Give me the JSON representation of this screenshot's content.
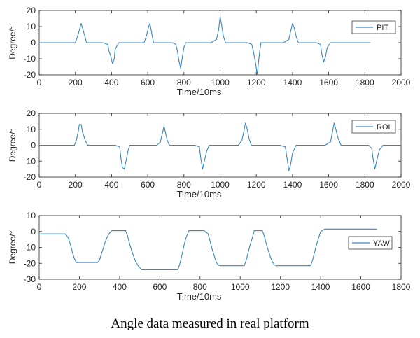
{
  "caption": "Angle data measured in real platform",
  "colors": {
    "line": "#3a86c0",
    "axis": "#262626"
  },
  "chart_data": [
    {
      "type": "line",
      "xlabel": "Time/10ms",
      "ylabel": "Degree/°",
      "xlim": [
        0,
        2000
      ],
      "ylim": [
        -20,
        20
      ],
      "xticks": [
        0,
        200,
        400,
        600,
        800,
        1000,
        1200,
        1400,
        1600,
        1800,
        2000
      ],
      "yticks": [
        20,
        10,
        0,
        -10,
        -20
      ],
      "grid": false,
      "legend": "top-right",
      "series": [
        {
          "name": "PIT",
          "x": [
            0,
            200,
            215,
            225,
            232,
            240,
            250,
            262,
            350,
            380,
            385,
            395,
            405,
            415,
            420,
            440,
            580,
            595,
            605,
            612,
            620,
            632,
            735,
            755,
            765,
            772,
            782,
            790,
            800,
            810,
            950,
            980,
            992,
            1000,
            1008,
            1018,
            1030,
            1150,
            1175,
            1185,
            1195,
            1205,
            1215,
            1225,
            1350,
            1380,
            1392,
            1400,
            1410,
            1420,
            1432,
            1530,
            1555,
            1560,
            1572,
            1582,
            1592,
            1610,
            1830
          ],
          "y": [
            0,
            0,
            5,
            9,
            12,
            9,
            5,
            0,
            0,
            -1,
            -5,
            -8,
            -13,
            -10,
            -4,
            0,
            0,
            5,
            10,
            12,
            7,
            0,
            0,
            -1,
            -6,
            -11,
            -16,
            -10,
            -3,
            0,
            0,
            2,
            8,
            16,
            11,
            4,
            0,
            0,
            -1,
            -6,
            -12,
            -20,
            -9,
            0,
            0,
            2,
            8,
            12,
            9,
            4,
            0,
            0,
            -1,
            -6,
            -12,
            -9,
            -3,
            0,
            0
          ]
        }
      ]
    },
    {
      "type": "line",
      "xlabel": "Time/10ms",
      "ylabel": "Degree/°",
      "xlim": [
        0,
        2000
      ],
      "ylim": [
        -20,
        20
      ],
      "xticks": [
        0,
        200,
        400,
        600,
        800,
        1000,
        1200,
        1400,
        1600,
        1800,
        2000
      ],
      "yticks": [
        20,
        10,
        0,
        -10,
        -20
      ],
      "grid": false,
      "legend": "top-right",
      "series": [
        {
          "name": "ROL",
          "x": [
            0,
            195,
            205,
            215,
            222,
            232,
            240,
            255,
            268,
            420,
            445,
            452,
            460,
            470,
            480,
            490,
            500,
            650,
            670,
            680,
            690,
            698,
            708,
            720,
            860,
            885,
            893,
            903,
            913,
            925,
            940,
            1100,
            1120,
            1130,
            1140,
            1150,
            1160,
            1172,
            1330,
            1360,
            1370,
            1380,
            1390,
            1400,
            1420,
            1580,
            1610,
            1620,
            1630,
            1640,
            1650,
            1668,
            1820,
            1838,
            1845,
            1855,
            1865,
            1880,
            1900,
            2000
          ],
          "y": [
            0,
            0,
            3,
            8,
            13,
            13,
            8,
            3,
            0,
            0,
            -1,
            -8,
            -14,
            -15,
            -10,
            -4,
            0,
            0,
            2,
            7,
            12,
            8,
            3,
            0,
            0,
            -1,
            -8,
            -15,
            -10,
            -4,
            0,
            0,
            3,
            8,
            14,
            10,
            4,
            0,
            0,
            -1,
            -8,
            -16,
            -12,
            -5,
            0,
            0,
            2,
            8,
            14,
            10,
            5,
            0,
            0,
            -2,
            -8,
            -15,
            -10,
            -3,
            0,
            0
          ]
        }
      ]
    },
    {
      "type": "line",
      "xlabel": "Time/10ms",
      "ylabel": "Degree/°",
      "xlim": [
        0,
        1800
      ],
      "ylim": [
        -30,
        10
      ],
      "xticks": [
        0,
        200,
        400,
        600,
        800,
        1000,
        1200,
        1400,
        1600,
        1800
      ],
      "yticks": [
        10,
        0,
        -10,
        -20,
        -30
      ],
      "grid": false,
      "legend": "right",
      "series": [
        {
          "name": "YAW",
          "x": [
            0,
            130,
            145,
            155,
            165,
            175,
            185,
            290,
            300,
            310,
            320,
            330,
            340,
            350,
            360,
            430,
            440,
            450,
            465,
            480,
            495,
            510,
            690,
            700,
            710,
            720,
            730,
            745,
            820,
            840,
            850,
            860,
            870,
            880,
            890,
            900,
            1020,
            1030,
            1040,
            1050,
            1060,
            1070,
            1090,
            1110,
            1120,
            1130,
            1140,
            1150,
            1160,
            1170,
            1180,
            1350,
            1360,
            1370,
            1380,
            1390,
            1400,
            1420,
            1680
          ],
          "y": [
            -1.5,
            -1.5,
            -4,
            -8,
            -13,
            -17,
            -19.5,
            -19.5,
            -18,
            -14,
            -10,
            -6,
            -3,
            -1,
            0.5,
            0.5,
            -3,
            -8,
            -14,
            -19,
            -22,
            -24,
            -24,
            -20,
            -15,
            -9,
            -4,
            0.5,
            0.5,
            -1.5,
            -6,
            -11,
            -15,
            -19,
            -21,
            -21.5,
            -21.5,
            -18,
            -13,
            -8,
            -4,
            0.5,
            0.5,
            0.5,
            -3,
            -8,
            -12,
            -16,
            -19,
            -21,
            -21.5,
            -21.5,
            -18,
            -13,
            -8,
            -4,
            0,
            1.5,
            1.5
          ]
        }
      ]
    }
  ]
}
